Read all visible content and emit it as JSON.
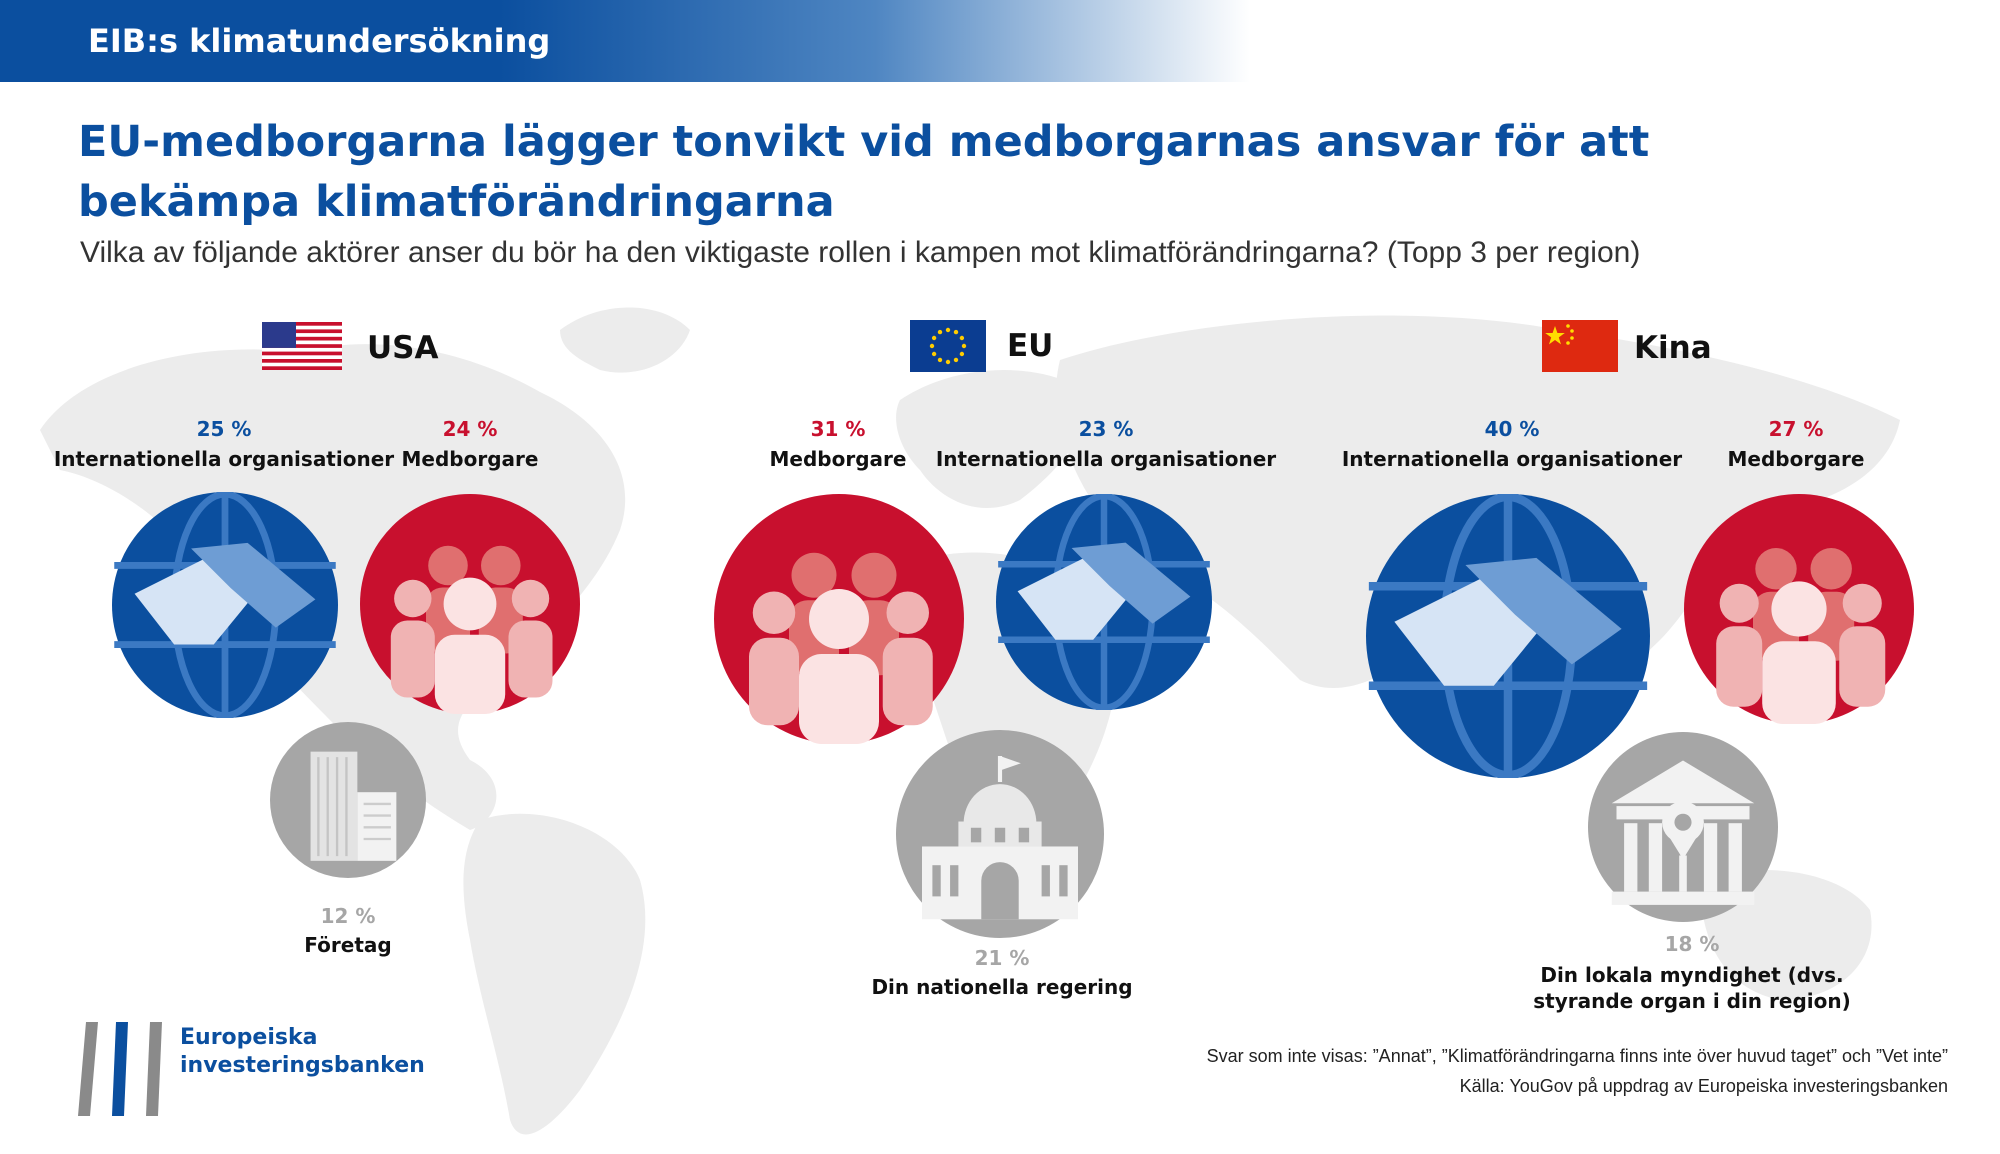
{
  "banner": {
    "text": "EIB:s klimatundersökning"
  },
  "title": {
    "line1": "EU-medborgarna lägger tonvikt vid medborgarnas ansvar för att",
    "line2": "bekämpa klimatförändringarna"
  },
  "subtitle": "Vilka av följande aktörer anser du bör ha den viktigaste rollen i kampen mot klimatförändringarna? (Topp 3 per region)",
  "chart_data": {
    "type": "bubble",
    "title": "EU-medborgarna lägger tonvikt vid medborgarnas ansvar för att bekämpa klimatförändringarna",
    "subtitle": "Vilka av följande aktörer anser du bör ha den viktigaste rollen i kampen mot klimatförändringarna? (Topp 3 per region)",
    "unit": "%",
    "regions": [
      {
        "name": "USA",
        "items": [
          {
            "label": "Internationella organisationer",
            "value": 25,
            "pct_text": "25 %",
            "category": "international",
            "color": "#0b4f9f"
          },
          {
            "label": "Medborgare",
            "value": 24,
            "pct_text": "24 %",
            "category": "citizens",
            "color": "#c8102e"
          },
          {
            "label": "Företag",
            "value": 12,
            "pct_text": "12 %",
            "category": "companies",
            "color": "#a6a6a6"
          }
        ]
      },
      {
        "name": "EU",
        "items": [
          {
            "label": "Medborgare",
            "value": 31,
            "pct_text": "31 %",
            "category": "citizens",
            "color": "#c8102e"
          },
          {
            "label": "Internationella organisationer",
            "value": 23,
            "pct_text": "23 %",
            "category": "international",
            "color": "#0b4f9f"
          },
          {
            "label": "Din nationella regering",
            "value": 21,
            "pct_text": "21 %",
            "category": "national-government",
            "color": "#a6a6a6"
          }
        ]
      },
      {
        "name": "Kina",
        "items": [
          {
            "label": "Internationella organisationer",
            "value": 40,
            "pct_text": "40 %",
            "category": "international",
            "color": "#0b4f9f"
          },
          {
            "label": "Medborgare",
            "value": 27,
            "pct_text": "27 %",
            "category": "citizens",
            "color": "#c8102e"
          },
          {
            "label_line1": "Din lokala myndighet (dvs.",
            "label_line2": "styrande organ i din region)",
            "value": 18,
            "pct_text": "18 %",
            "category": "local-authority",
            "color": "#a6a6a6"
          }
        ]
      }
    ]
  },
  "icons": {
    "international": "handshake-globe-icon",
    "citizens": "people-group-icon",
    "companies": "office-building-icon",
    "national-government": "capitol-building-icon",
    "local-authority": "town-hall-icon"
  },
  "colors": {
    "accent": "#0b4f9f",
    "citizens": "#c8102e",
    "other": "#a6a6a6"
  },
  "logo": {
    "line1": "Europeiska",
    "line2": "investeringsbanken"
  },
  "footer": {
    "note": "Svar som inte visas: ”Annat”, ”Klimatförändringarna finns inte över huvud taget” och ”Vet inte”",
    "source": "Källa: YouGov på uppdrag av Europeiska investeringsbanken"
  }
}
